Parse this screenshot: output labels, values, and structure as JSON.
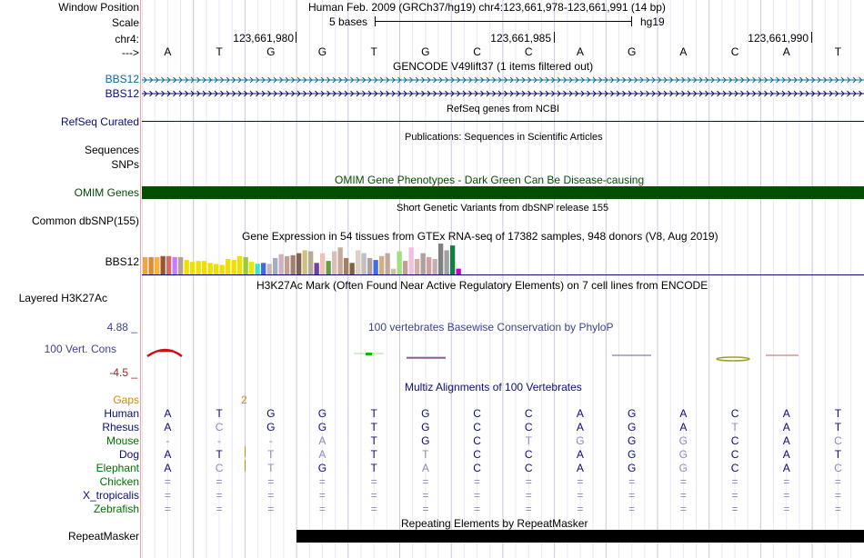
{
  "header": {
    "window_position_label": "Window Position",
    "window_position_value": "Human Feb. 2009 (GRCh37/hg19)   chr4:123,661,978-123,661,991 (14 bp)",
    "scale_label": "Scale",
    "scale_text": "5 bases",
    "scale_assembly": "hg19",
    "chrom_label": "chr4:",
    "positions": [
      "123,661,980",
      "123,661,985",
      "123,661,990"
    ],
    "strand_label": "--->",
    "bases": [
      "A",
      "T",
      "G",
      "G",
      "T",
      "G",
      "C",
      "C",
      "A",
      "G",
      "A",
      "C",
      "A",
      "T"
    ]
  },
  "tracks": {
    "gencode_title": "GENCODE V49lift37 (1 items filtered out)",
    "gencode_items": [
      "BBS12",
      "BBS12"
    ],
    "refseq_title": "RefSeq genes from NCBI",
    "refseq_label": "RefSeq Curated",
    "pubs_title": "Publications: Sequences in Scientific Articles",
    "sequences_label": "Sequences",
    "snps_label": "SNPs",
    "omim_title": "OMIM Gene Phenotypes - Dark Green Can Be Disease-causing",
    "omim_label": "OMIM Genes",
    "dbsnp_title": "Short Genetic Variants from dbSNP release 155",
    "dbsnp_label": "Common dbSNP(155)",
    "gtex_title": "Gene Expression in 54 tissues from GTEx RNA-seq of 17382 samples, 948 donors (V8, Aug 2019)",
    "gtex_label": "BBS12",
    "h3k27_title": "H3K27Ac Mark (Often Found Near Active Regulatory Elements) on 7 cell lines from ENCODE",
    "h3k27_label": "Layered H3K27Ac",
    "phylop_title": "100 vertebrates Basewise Conservation by PhyloP",
    "phylop_label": "100 Vert. Cons",
    "phylop_max": "4.88 _",
    "phylop_min": "-4.5 _",
    "multiz_title": "Multiz Alignments of 100 Vertebrates",
    "gaps_label": "Gaps",
    "gaps_value": "2",
    "repeat_title": "Repeating Elements by RepeatMasker",
    "repeat_label": "RepeatMasker"
  },
  "colors": {
    "gencode": "#0c6b9a",
    "refseq": "#0c0c78",
    "omim": "#004f00",
    "phylop": "#404090",
    "phylop_neg": "#a02020",
    "gaps": "#d28b00",
    "divider": "#e2a4a4"
  },
  "chart_data": {
    "type": "bar",
    "title": "Gene Expression in 54 tissues from GTEx RNA-seq of 17382 samples, 948 donors (V8, Aug 2019)",
    "xlabel": "",
    "ylabel": "",
    "ylim": [
      0,
      32
    ],
    "values": [
      18,
      18,
      18,
      19,
      19,
      18,
      18,
      15,
      13,
      14,
      14,
      12,
      11,
      10,
      16,
      15,
      19,
      18,
      13,
      11,
      12,
      11,
      17,
      21,
      19,
      20,
      22,
      25,
      24,
      12,
      22,
      14,
      24,
      28,
      17,
      12,
      25,
      22,
      17,
      15,
      19,
      22,
      6,
      24,
      14,
      28,
      16,
      22,
      18,
      16,
      33,
      25,
      30,
      6
    ],
    "colors": [
      "#f4a341",
      "#e08a30",
      "#f7b23c",
      "#a0522d",
      "#e06666",
      "#c080ff",
      "#b3a098",
      "#f0e000",
      "#f0e000",
      "#f0e000",
      "#f0e000",
      "#f0e000",
      "#f0e000",
      "#f0e000",
      "#f0e000",
      "#f0e000",
      "#f0e000",
      "#9acd32",
      "#e8e800",
      "#40e0d0",
      "#4169e1",
      "#c8b8b0",
      "#a0b0c0",
      "#d0b0c0",
      "#c0a090",
      "#a08070",
      "#806050",
      "#d0c080",
      "#b8a898",
      "#7040a0",
      "#f0c0b0",
      "#60a040",
      "#d8c0b8",
      "#c8a898",
      "#a08060",
      "#806040",
      "#e0d0c0",
      "#c0c0c0",
      "#b0a0a0",
      "#4070e0",
      "#d0b080",
      "#c0a8a0",
      "#d0c0a0",
      "#a0e080",
      "#c0a090",
      "#f0c0e0",
      "#d0b0a0",
      "#b0a0a0",
      "#d0a0a0",
      "#c0b0b0",
      "#808080",
      "#a0a0a0",
      "#108040",
      "#c000c0"
    ]
  },
  "multiz": {
    "species": [
      "Human",
      "Rhesus",
      "Mouse",
      "Dog",
      "Elephant",
      "Chicken",
      "X_tropicalis",
      "Zebrafish"
    ],
    "rows": [
      [
        "A",
        "T",
        "G",
        "G",
        "T",
        "G",
        "C",
        "C",
        "A",
        "G",
        "A",
        "C",
        "A",
        "T"
      ],
      [
        "A",
        "C",
        "G",
        "G",
        "T",
        "G",
        "C",
        "C",
        "A",
        "G",
        "A",
        "T",
        "A",
        "T"
      ],
      [
        "-",
        "-",
        "-",
        "A",
        "T",
        "G",
        "C",
        "T",
        "G",
        "G",
        "G",
        "C",
        "A",
        "C"
      ],
      [
        "A",
        "T",
        "T",
        "A",
        "T",
        "T",
        "C",
        "C",
        "A",
        "G",
        "G",
        "C",
        "A",
        "T"
      ],
      [
        "A",
        "C",
        "T",
        "G",
        "T",
        "A",
        "C",
        "C",
        "A",
        "G",
        "G",
        "C",
        "A",
        "C"
      ],
      [
        "=",
        "=",
        "=",
        "=",
        "=",
        "=",
        "=",
        "=",
        "=",
        "=",
        "=",
        "=",
        "=",
        "="
      ],
      [
        "=",
        "=",
        "=",
        "=",
        "=",
        "=",
        "=",
        "=",
        "=",
        "=",
        "=",
        "=",
        "=",
        "="
      ],
      [
        "=",
        "=",
        "=",
        "=",
        "=",
        "=",
        "=",
        "=",
        "=",
        "=",
        "=",
        "=",
        "=",
        "="
      ]
    ]
  }
}
